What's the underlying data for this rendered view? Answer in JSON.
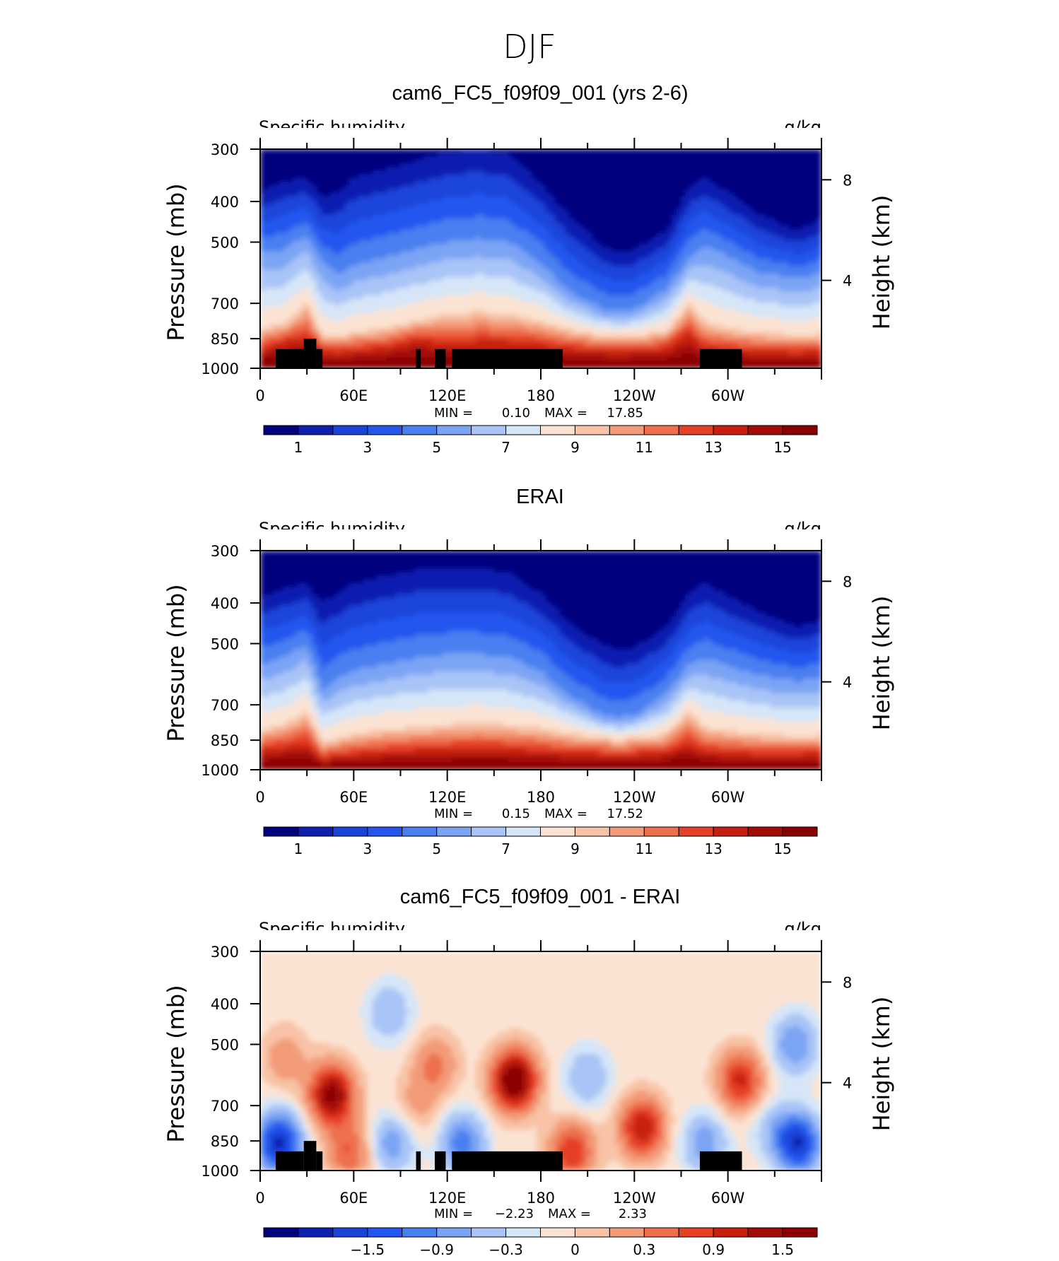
{
  "figure": {
    "title": "DJF"
  },
  "colorbar_palette": [
    "#00007f",
    "#0f1fb0",
    "#1a44d9",
    "#2456ee",
    "#4a7ff0",
    "#7ba4f4",
    "#a9c4f6",
    "#d6e6f8",
    "#fbe3d3",
    "#f8c3a6",
    "#f39b78",
    "#ee6f4d",
    "#e54127",
    "#c7200f",
    "#a30c07",
    "#8a0000"
  ],
  "colors": {
    "mask": "#000000",
    "axis": "#000000"
  },
  "panels": [
    {
      "title": "cam6_FC5_f09f09_001 (yrs 2-6)",
      "left_label": "Specific humidity",
      "right_label": "g/kg",
      "ylabel": "Pressure (mb)",
      "y2label": "Height (km)",
      "yticks": [
        "300",
        "400",
        "500",
        "700",
        "850",
        "1000"
      ],
      "y2ticks": [
        "8",
        "4"
      ],
      "xticks": [
        "0",
        "60E",
        "120E",
        "180",
        "120W",
        "60W"
      ],
      "stats": {
        "min_label": "MIN =",
        "min": "0.10",
        "max_label": "MAX =",
        "max": "17.85"
      },
      "colorbar_labels": [
        "1",
        "3",
        "5",
        "7",
        "9",
        "11",
        "13",
        "15"
      ],
      "chart_data": {
        "type": "contour",
        "title": "cam6_FC5_f09f09_001 (yrs 2-6)",
        "variable": "Specific humidity",
        "units": "g/kg",
        "x_range_deg": [
          0,
          360
        ],
        "pressure_range_mb": [
          300,
          1000
        ],
        "min": 0.1,
        "max": 17.85,
        "contour_levels": [
          1,
          2,
          3,
          4,
          5,
          6,
          7,
          8,
          9,
          10,
          11,
          12,
          13,
          14,
          15
        ],
        "profile_samples": {
          "lon_deg": [
            0,
            15,
            30,
            40,
            50,
            60,
            80,
            100,
            120,
            140,
            160,
            180,
            200,
            220,
            230,
            240,
            260,
            275,
            285,
            300,
            320,
            345,
            360
          ],
          "level_1gkg_pressure_mb": [
            380,
            360,
            350,
            390,
            380,
            350,
            335,
            320,
            305,
            300,
            310,
            360,
            440,
            510,
            530,
            520,
            470,
            370,
            350,
            380,
            430,
            470,
            440
          ],
          "level_5gkg_pressure_mb": [
            530,
            520,
            480,
            560,
            600,
            570,
            545,
            520,
            500,
            490,
            500,
            560,
            660,
            720,
            730,
            720,
            650,
            540,
            510,
            540,
            590,
            610,
            590
          ],
          "level_9gkg_pressure_mb": [
            800,
            785,
            690,
            830,
            840,
            820,
            800,
            770,
            740,
            730,
            740,
            770,
            810,
            835,
            840,
            835,
            815,
            700,
            770,
            800,
            820,
            830,
            825
          ],
          "level_13gkg_pressure_mb": [
            900,
            860,
            840,
            910,
            915,
            905,
            890,
            850,
            870,
            860,
            860,
            875,
            895,
            905,
            910,
            905,
            895,
            820,
            890,
            900,
            910,
            915,
            910
          ]
        },
        "masked_surface_lon_deg": [
          [
            10,
            40
          ],
          [
            100,
            103
          ],
          [
            112,
            119
          ],
          [
            123,
            194
          ],
          [
            282,
            309
          ]
        ],
        "masked_surface_top_mb": [
          [
            10,
            28,
            900
          ],
          [
            28,
            36,
            850
          ],
          [
            36,
            40,
            900
          ],
          [
            100,
            103,
            900
          ],
          [
            112,
            119,
            900
          ],
          [
            123,
            194,
            900
          ],
          [
            282,
            309,
            900
          ]
        ]
      }
    },
    {
      "title": "ERAI",
      "left_label": "Specific humidity",
      "right_label": "g/kg",
      "ylabel": "Pressure (mb)",
      "y2label": "Height (km)",
      "yticks": [
        "300",
        "400",
        "500",
        "700",
        "850",
        "1000"
      ],
      "y2ticks": [
        "8",
        "4"
      ],
      "xticks": [
        "0",
        "60E",
        "120E",
        "180",
        "120W",
        "60W"
      ],
      "stats": {
        "min_label": "MIN =",
        "min": "0.15",
        "max_label": "MAX =",
        "max": "17.52"
      },
      "colorbar_labels": [
        "1",
        "3",
        "5",
        "7",
        "9",
        "11",
        "13",
        "15"
      ],
      "chart_data": {
        "type": "contour",
        "title": "ERAI",
        "variable": "Specific humidity",
        "units": "g/kg",
        "x_range_deg": [
          0,
          360
        ],
        "pressure_range_mb": [
          300,
          1000
        ],
        "min": 0.15,
        "max": 17.52,
        "contour_levels": [
          1,
          2,
          3,
          4,
          5,
          6,
          7,
          8,
          9,
          10,
          11,
          12,
          13,
          14,
          15
        ],
        "profile_samples": {
          "lon_deg": [
            0,
            15,
            30,
            40,
            50,
            60,
            80,
            100,
            120,
            140,
            160,
            180,
            200,
            220,
            230,
            240,
            260,
            275,
            285,
            300,
            320,
            345,
            360
          ],
          "level_1gkg_pressure_mb": [
            390,
            370,
            360,
            400,
            380,
            360,
            345,
            335,
            330,
            330,
            340,
            380,
            450,
            505,
            520,
            510,
            460,
            380,
            360,
            385,
            420,
            455,
            440
          ],
          "level_5gkg_pressure_mb": [
            560,
            540,
            500,
            640,
            600,
            580,
            560,
            540,
            530,
            530,
            540,
            580,
            670,
            740,
            750,
            740,
            660,
            560,
            540,
            565,
            595,
            615,
            600
          ],
          "level_9gkg_pressure_mb": [
            800,
            780,
            720,
            860,
            840,
            820,
            800,
            790,
            780,
            770,
            780,
            795,
            820,
            840,
            845,
            840,
            820,
            720,
            790,
            805,
            820,
            830,
            825
          ],
          "level_13gkg_pressure_mb": [
            895,
            880,
            860,
            940,
            925,
            915,
            905,
            895,
            890,
            885,
            890,
            900,
            910,
            915,
            915,
            915,
            905,
            860,
            900,
            910,
            915,
            915,
            910
          ]
        }
      }
    },
    {
      "title": "cam6_FC5_f09f09_001 - ERAI",
      "left_label": "Specific humidity",
      "right_label": "g/kg",
      "ylabel": "Pressure (mb)",
      "y2label": "Height (km)",
      "yticks": [
        "300",
        "400",
        "500",
        "700",
        "850",
        "1000"
      ],
      "y2ticks": [
        "8",
        "4"
      ],
      "xticks": [
        "0",
        "60E",
        "120E",
        "180",
        "120W",
        "60W"
      ],
      "stats": {
        "min_label": "MIN =",
        "min": "−2.23",
        "max_label": "MAX =",
        "max": "2.33"
      },
      "colorbar_labels": [
        "−1.5",
        "−0.9",
        "−0.3",
        "0",
        "0.3",
        "0.9",
        "1.5"
      ],
      "chart_data": {
        "type": "contour",
        "title": "cam6_FC5_f09f09_001 - ERAI",
        "variable": "Specific humidity",
        "units": "g/kg",
        "x_range_deg": [
          0,
          360
        ],
        "pressure_range_mb": [
          300,
          1000
        ],
        "min": -2.23,
        "max": 2.33,
        "contour_levels": [
          -2.1,
          -1.8,
          -1.5,
          -1.2,
          -0.9,
          -0.6,
          -0.3,
          -0.1,
          0.1,
          0.3,
          0.6,
          0.9,
          1.2,
          1.5,
          1.8,
          2.1
        ],
        "anomaly_centers": [
          {
            "lon": 12,
            "p": 860,
            "value": -1.9
          },
          {
            "lon": 46,
            "p": 660,
            "value": 1.9
          },
          {
            "lon": 16,
            "p": 540,
            "value": 0.5
          },
          {
            "lon": 85,
            "p": 860,
            "value": -0.8
          },
          {
            "lon": 83,
            "p": 420,
            "value": -0.6
          },
          {
            "lon": 130,
            "p": 860,
            "value": -1.1
          },
          {
            "lon": 112,
            "p": 560,
            "value": 0.7
          },
          {
            "lon": 163,
            "p": 610,
            "value": 2.2
          },
          {
            "lon": 210,
            "p": 600,
            "value": -0.6
          },
          {
            "lon": 245,
            "p": 790,
            "value": 1.5
          },
          {
            "lon": 200,
            "p": 900,
            "value": 1.2
          },
          {
            "lon": 285,
            "p": 860,
            "value": -0.8
          },
          {
            "lon": 308,
            "p": 610,
            "value": 1.3
          },
          {
            "lon": 345,
            "p": 860,
            "value": -1.8
          },
          {
            "lon": 343,
            "p": 500,
            "value": -0.9
          },
          {
            "lon": 328,
            "p": 790,
            "value": -0.4
          },
          {
            "lon": 57,
            "p": 900,
            "value": 0.9
          },
          {
            "lon": 100,
            "p": 700,
            "value": 0.4
          }
        ],
        "masked_surface_top_mb": [
          [
            10,
            28,
            900
          ],
          [
            28,
            36,
            850
          ],
          [
            36,
            40,
            900
          ],
          [
            100,
            103,
            900
          ],
          [
            112,
            119,
            900
          ],
          [
            123,
            194,
            900
          ],
          [
            282,
            309,
            900
          ]
        ]
      }
    }
  ]
}
